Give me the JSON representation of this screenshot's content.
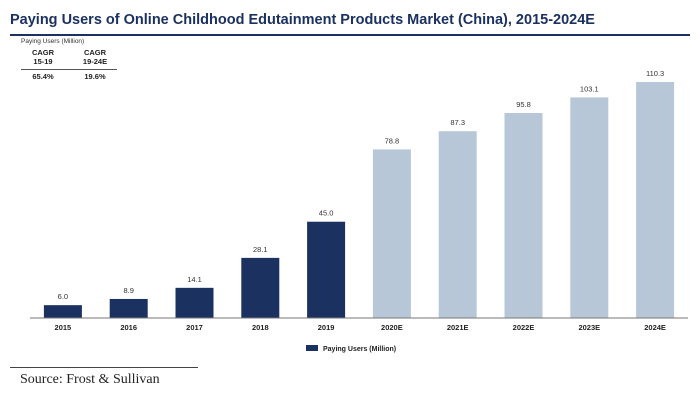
{
  "chart_data": {
    "type": "bar",
    "title": "Paying Users of Online Childhood Edutainment Products Market (China), 2015-2024E",
    "ylabel": "Paying Users (Million)",
    "categories": [
      "2015",
      "2016",
      "2017",
      "2018",
      "2019",
      "2020E",
      "2021E",
      "2022E",
      "2023E",
      "2024E"
    ],
    "series": [
      {
        "name": "Paying Users (Million)",
        "values": [
          6.0,
          8.9,
          14.1,
          28.1,
          45.0,
          78.8,
          87.3,
          95.8,
          103.1,
          110.3
        ]
      }
    ],
    "value_labels": [
      "6.0",
      "8.9",
      "14.1",
      "28.1",
      "45.0",
      "78.8",
      "87.3",
      "95.8",
      "103.1",
      "110.3"
    ],
    "ylim": [
      0,
      110.3
    ],
    "grid": false,
    "legend": "bottom-center",
    "colors": {
      "actual": "#1b3160",
      "forecast": "#b7c7d7",
      "axis": "#777777",
      "title": "#1b3160"
    },
    "forecast_from_index": 5,
    "cagr": [
      {
        "label": "CAGR",
        "period": "15-19",
        "value": "65.4%"
      },
      {
        "label": "CAGR",
        "period": "19-24E",
        "value": "19.6%"
      }
    ]
  },
  "source": "Source: Frost & Sullivan"
}
